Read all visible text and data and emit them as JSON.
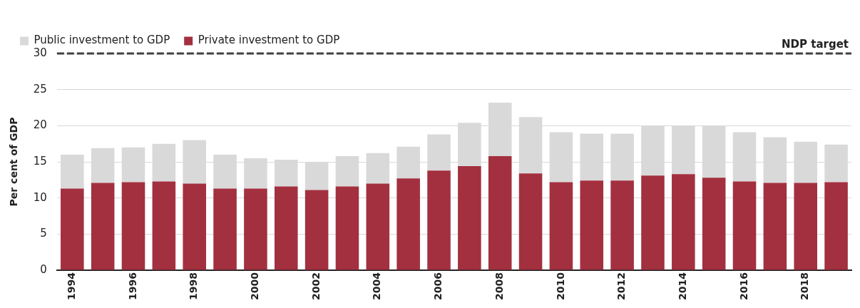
{
  "chart_data": {
    "type": "bar",
    "stacked": true,
    "ylabel": "Per cent of GDP",
    "categories": [
      "1994",
      null,
      "1996",
      null,
      "1998",
      null,
      "2000",
      null,
      "2002",
      null,
      "2004",
      null,
      "2006",
      null,
      "2008",
      null,
      "2010",
      null,
      "2012",
      null,
      "2014",
      null,
      "2016",
      null,
      "2018",
      null
    ],
    "series": [
      {
        "name": "Private investment to GDP",
        "color": "#a3303f",
        "values": [
          11.3,
          12.1,
          12.2,
          12.3,
          12.0,
          11.3,
          11.3,
          11.6,
          11.1,
          11.6,
          12.0,
          12.7,
          13.8,
          14.4,
          15.8,
          13.4,
          12.2,
          12.4,
          12.4,
          13.1,
          13.3,
          12.8,
          12.3,
          12.1,
          12.1,
          12.2
        ]
      },
      {
        "name": "Public investment to GDP",
        "color": "#d9d9d9",
        "values": [
          4.7,
          4.8,
          4.8,
          5.2,
          6.0,
          4.7,
          4.2,
          3.7,
          3.9,
          4.2,
          4.2,
          4.4,
          5.0,
          6.0,
          7.4,
          7.8,
          6.9,
          6.5,
          6.5,
          6.9,
          6.7,
          7.2,
          6.8,
          6.3,
          5.7,
          5.2
        ]
      }
    ],
    "ylim": [
      0,
      30
    ],
    "yticks": [
      0,
      5,
      10,
      15,
      20,
      25,
      30
    ],
    "grid": "y",
    "legend": "top left",
    "ref_lines": [
      {
        "axis": "y",
        "value": 30,
        "label": "NDP target",
        "color": "#404040",
        "line_style": "dashed"
      }
    ]
  }
}
